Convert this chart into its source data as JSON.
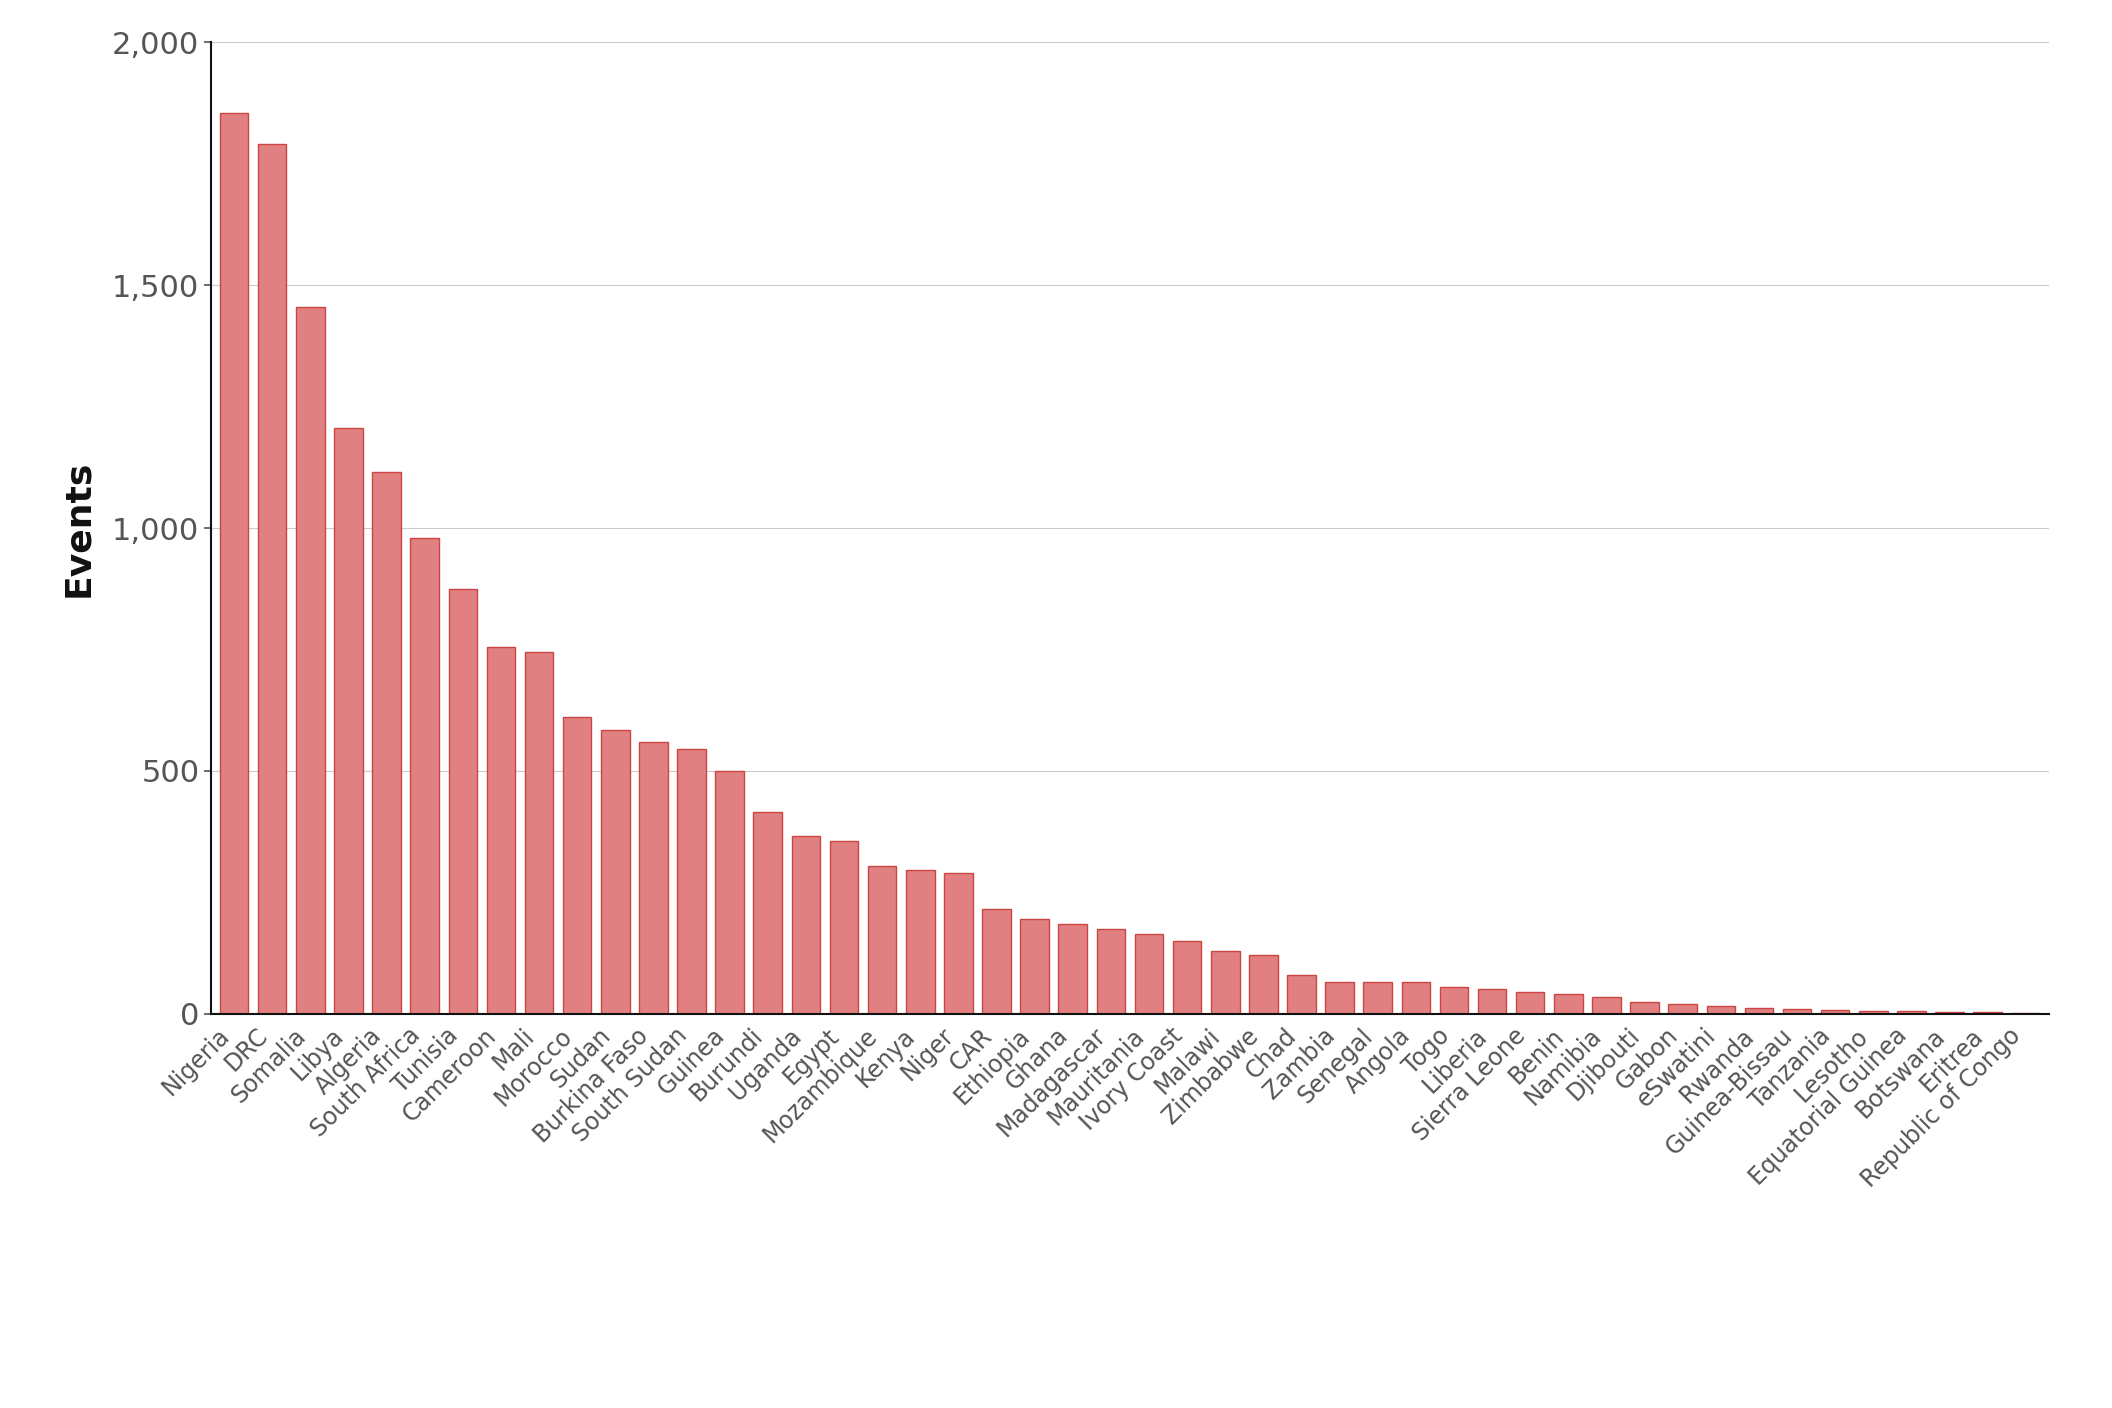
{
  "categories": [
    "Nigeria",
    "DRC",
    "Somalia",
    "Libya",
    "Algeria",
    "South Africa",
    "Tunisia",
    "Cameroon",
    "Mali",
    "Morocco",
    "Sudan",
    "Burkina Faso",
    "South Sudan",
    "Guinea",
    "Burundi",
    "Uganda",
    "Egypt",
    "Mozambique",
    "Kenya",
    "Niger",
    "CAR",
    "Ethiopia",
    "Ghana",
    "Madagascar",
    "Mauritania",
    "Ivory Coast",
    "Malawi",
    "Zimbabwe",
    "Chad",
    "Zambia",
    "Senegal",
    "Angola",
    "Togo",
    "Liberia",
    "Sierra Leone",
    "Benin",
    "Namibia",
    "Djibouti",
    "Gabon",
    "eSwatini",
    "Rwanda",
    "Guinea-Bissau",
    "Tanzania",
    "Lesotho",
    "Equatorial Guinea",
    "Botswana",
    "Eritrea",
    "Republic of Congo"
  ],
  "values": [
    1855,
    1790,
    1455,
    1205,
    1115,
    980,
    875,
    755,
    745,
    610,
    585,
    560,
    545,
    500,
    415,
    365,
    355,
    305,
    295,
    290,
    215,
    195,
    185,
    175,
    165,
    150,
    130,
    120,
    80,
    65,
    65,
    65,
    55,
    50,
    45,
    40,
    35,
    25,
    20,
    15,
    12,
    10,
    8,
    6,
    5,
    4,
    3,
    2
  ],
  "bar_fill_color": "#e08080",
  "bar_edge_color": "#cc4444",
  "ylabel": "Events",
  "ylim": [
    0,
    2000
  ],
  "yticks": [
    0,
    500,
    1000,
    1500,
    2000
  ],
  "ytick_labels": [
    "0",
    "500",
    "1,000",
    "1,500",
    "2,000"
  ],
  "background_color": "#ffffff",
  "grid_color": "#cccccc",
  "tick_color": "#555555",
  "label_fontsize": 26,
  "tick_fontsize": 22,
  "xticklabel_fontsize": 17,
  "bar_width": 0.75
}
